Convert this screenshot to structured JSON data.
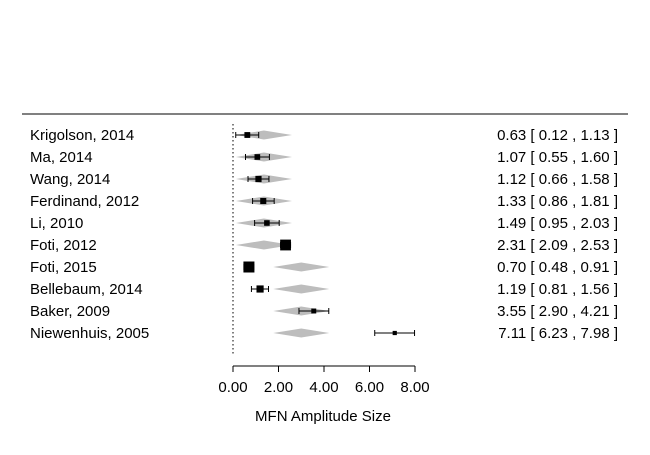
{
  "chart_data": {
    "type": "forest",
    "xlabel": "MFN Amplitude Size",
    "xlim": [
      0,
      8
    ],
    "x_ticks": [
      0,
      2,
      4,
      6,
      8
    ],
    "x_tick_labels": [
      "0.00",
      "2.00",
      "4.00",
      "6.00",
      "8.00"
    ],
    "reference_line": 0,
    "rows": [
      {
        "study": "Krigolson, 2014",
        "estimate": 0.63,
        "lower": 0.12,
        "upper": 1.13,
        "ci_text": "0.63 [ 0.12 , 1.13 ]",
        "fitted": 1.36
      },
      {
        "study": "Ma, 2014",
        "estimate": 1.07,
        "lower": 0.55,
        "upper": 1.6,
        "ci_text": "1.07 [ 0.55 , 1.60 ]",
        "fitted": 1.36
      },
      {
        "study": "Wang, 2014",
        "estimate": 1.12,
        "lower": 0.66,
        "upper": 1.58,
        "ci_text": "1.12 [ 0.66 , 1.58 ]",
        "fitted": 1.36
      },
      {
        "study": "Ferdinand, 2012",
        "estimate": 1.33,
        "lower": 0.86,
        "upper": 1.81,
        "ci_text": "1.33 [ 0.86 , 1.81 ]",
        "fitted": 1.36
      },
      {
        "study": "Li, 2010",
        "estimate": 1.49,
        "lower": 0.95,
        "upper": 2.03,
        "ci_text": "1.49 [ 0.95 , 2.03 ]",
        "fitted": 1.36
      },
      {
        "study": "Foti, 2012",
        "estimate": 2.31,
        "lower": 2.09,
        "upper": 2.53,
        "ci_text": "2.31 [ 2.09 , 2.53 ]",
        "fitted": 1.36
      },
      {
        "study": "Foti, 2015",
        "estimate": 0.7,
        "lower": 0.48,
        "upper": 0.91,
        "ci_text": "0.70 [ 0.48 , 0.91 ]",
        "fitted": 3.0
      },
      {
        "study": "Bellebaum, 2014",
        "estimate": 1.19,
        "lower": 0.81,
        "upper": 1.56,
        "ci_text": "1.19 [ 0.81 , 1.56 ]",
        "fitted": 3.0
      },
      {
        "study": "Baker, 2009",
        "estimate": 3.55,
        "lower": 2.9,
        "upper": 4.21,
        "ci_text": "3.55 [ 2.90 , 4.21 ]",
        "fitted": 3.0
      },
      {
        "study": "Niewenhuis, 2005",
        "estimate": 7.11,
        "lower": 6.23,
        "upper": 7.98,
        "ci_text": "7.11 [ 6.23 , 7.98 ]",
        "fitted": 3.0
      }
    ],
    "colors": {
      "marker": "#000000",
      "diamond": "#bdbdbd",
      "axis": "#000000"
    }
  }
}
